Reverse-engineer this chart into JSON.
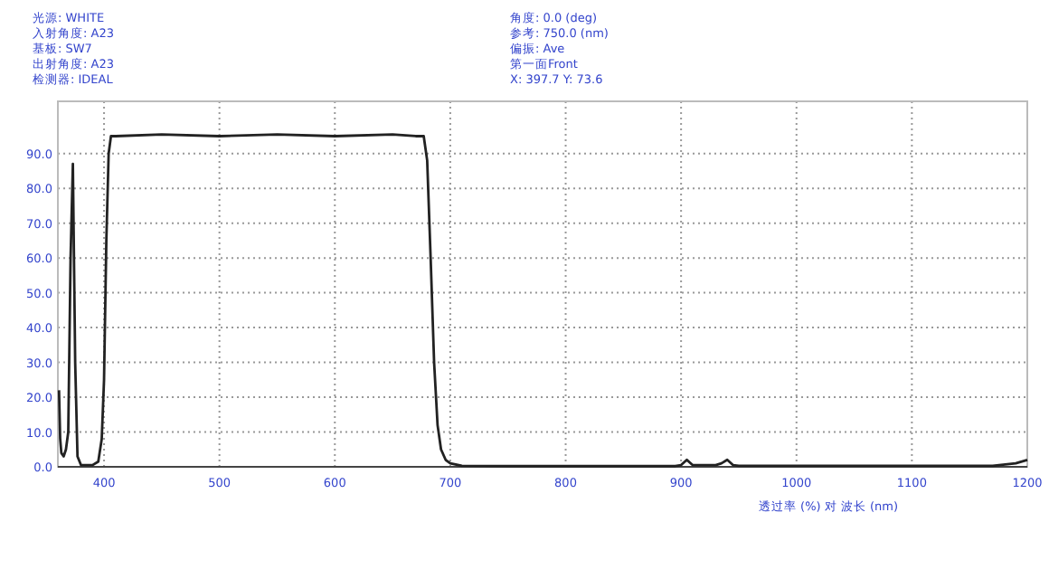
{
  "chart_data": {
    "type": "line",
    "xlabel": "透过率 (%) 对 波长 (nm)",
    "annotations": [
      "光源:    WHITE",
      "入射角度: A23",
      "基板:    SW7",
      "出射角度: A23",
      "检测器:  IDEAL",
      "角度: 0.0 (deg)",
      "参考: 750.0 (nm)",
      "偏振: Ave",
      "第一面Front",
      "X:  397.7  Y: 73.6"
    ],
    "x": [
      361,
      362,
      363,
      365,
      367,
      369,
      371,
      373,
      375,
      377,
      380,
      385,
      390,
      395,
      398,
      400,
      402,
      404,
      406,
      410,
      450,
      500,
      550,
      600,
      650,
      670,
      677,
      680,
      683,
      686,
      689,
      692,
      696,
      700,
      710,
      750,
      800,
      850,
      895,
      900,
      905,
      910,
      920,
      930,
      935,
      940,
      945,
      950,
      1000,
      1050,
      1100,
      1150,
      1170,
      1190,
      1200
    ],
    "series": [
      {
        "color": "#222222",
        "values": [
          22,
          8,
          4,
          3,
          5,
          10,
          60,
          87,
          30,
          3,
          0.5,
          0.5,
          0.5,
          1.5,
          8,
          25,
          65,
          90,
          95,
          95,
          95.5,
          95,
          95.5,
          95,
          95.5,
          95,
          95,
          88,
          60,
          30,
          12,
          5,
          2,
          1,
          0.3,
          0.2,
          0.2,
          0.2,
          0.2,
          0.5,
          2,
          0.5,
          0.5,
          0.5,
          1,
          2,
          0.5,
          0.3,
          0.3,
          0.3,
          0.3,
          0.3,
          0.3,
          1,
          2
        ]
      }
    ],
    "xlim": [
      360,
      1200
    ],
    "ylim": [
      0,
      105
    ],
    "xticks": [
      400,
      500,
      600,
      700,
      800,
      900,
      1000,
      1100,
      1200
    ],
    "yticks": [
      {
        "value": 0,
        "label": "0.0"
      },
      {
        "value": 10,
        "label": "10.0"
      },
      {
        "value": 20,
        "label": "20.0"
      },
      {
        "value": 30,
        "label": "30.0"
      },
      {
        "value": 40,
        "label": "40.0"
      },
      {
        "value": 50,
        "label": "50.0"
      },
      {
        "value": 60,
        "label": "60.0"
      },
      {
        "value": 70,
        "label": "70.0"
      },
      {
        "value": 80,
        "label": "80.0"
      },
      {
        "value": 90,
        "label": "90.0"
      }
    ],
    "grid": true,
    "line_style": "solid",
    "marker": "none"
  }
}
